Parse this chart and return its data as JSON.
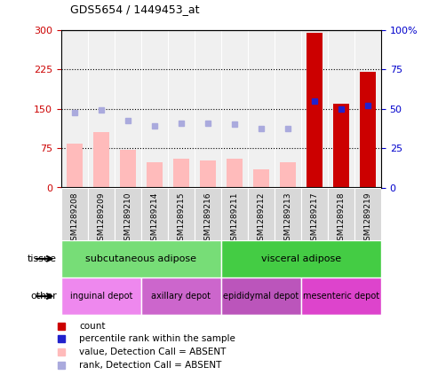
{
  "title": "GDS5654 / 1449453_at",
  "samples": [
    "GSM1289208",
    "GSM1289209",
    "GSM1289210",
    "GSM1289214",
    "GSM1289215",
    "GSM1289216",
    "GSM1289211",
    "GSM1289212",
    "GSM1289213",
    "GSM1289217",
    "GSM1289218",
    "GSM1289219"
  ],
  "value_absent": [
    83,
    105,
    72,
    48,
    55,
    52,
    55,
    35,
    48,
    null,
    null,
    null
  ],
  "rank_absent_pct": [
    47.7,
    49.0,
    42.3,
    39.3,
    40.7,
    40.7,
    40.3,
    37.3,
    37.7,
    null,
    null,
    null
  ],
  "count_present": [
    null,
    null,
    null,
    null,
    null,
    null,
    null,
    null,
    null,
    295,
    160,
    220
  ],
  "percentile_present": [
    null,
    null,
    null,
    null,
    null,
    null,
    null,
    null,
    null,
    55,
    50,
    52
  ],
  "ylim_left": [
    0,
    300
  ],
  "ylim_right": [
    0,
    100
  ],
  "yticks_left": [
    0,
    75,
    150,
    225,
    300
  ],
  "yticks_right": [
    0,
    25,
    50,
    75,
    100
  ],
  "ytick_labels_left": [
    "0",
    "75",
    "150",
    "225",
    "300"
  ],
  "ytick_labels_right": [
    "0",
    "25",
    "50",
    "75",
    "100%"
  ],
  "tissue_groups": [
    {
      "label": "subcutaneous adipose",
      "start": 0,
      "end": 6,
      "color": "#77dd77"
    },
    {
      "label": "visceral adipose",
      "start": 6,
      "end": 12,
      "color": "#44cc44"
    }
  ],
  "other_groups": [
    {
      "label": "inguinal depot",
      "start": 0,
      "end": 3,
      "color": "#ee88ee"
    },
    {
      "label": "axillary depot",
      "start": 3,
      "end": 6,
      "color": "#cc66cc"
    },
    {
      "label": "epididymal depot",
      "start": 6,
      "end": 9,
      "color": "#bb55bb"
    },
    {
      "label": "mesenteric depot",
      "start": 9,
      "end": 12,
      "color": "#dd44cc"
    }
  ],
  "color_count": "#cc0000",
  "color_percentile": "#2222cc",
  "color_value_absent": "#ffbbbb",
  "color_rank_absent": "#aaaadd",
  "bar_width": 0.6,
  "bg_color": "#ffffff",
  "plot_bg": "#ffffff",
  "cell_bg": "#d8d8d8",
  "grid_color": "#000000"
}
